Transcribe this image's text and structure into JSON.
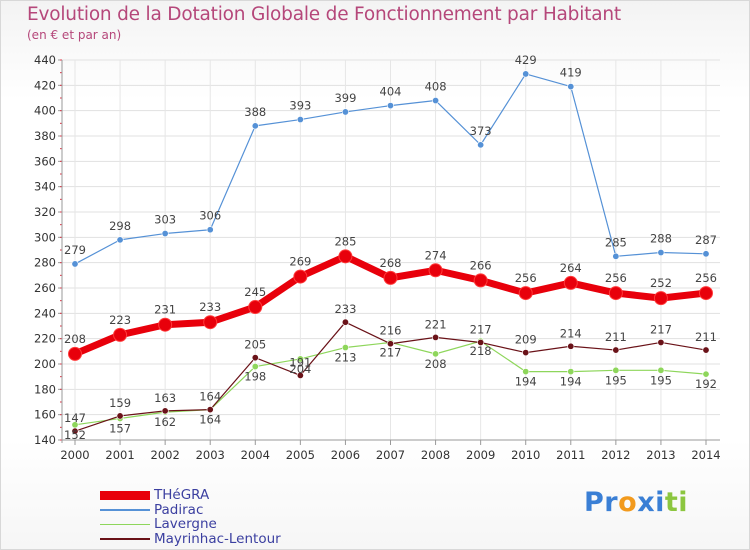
{
  "chart_data": {
    "type": "line",
    "title": "Evolution de la Dotation Globale de Fonctionnement par Habitant",
    "subtitle": "(en € et par an)",
    "x": [
      "2000",
      "2001",
      "2002",
      "2003",
      "2004",
      "2005",
      "2006",
      "2007",
      "2008",
      "2009",
      "2010",
      "2011",
      "2012",
      "2013",
      "2014"
    ],
    "ylim": [
      140,
      440
    ],
    "yticks": [
      140,
      160,
      180,
      200,
      220,
      240,
      260,
      280,
      300,
      320,
      340,
      360,
      380,
      400,
      420,
      440
    ],
    "grid": true,
    "legend_position": "bottom-left",
    "series": [
      {
        "name": "THéGRA",
        "color": "#e8000b",
        "values": [
          208,
          223,
          231,
          233,
          245,
          269,
          285,
          268,
          274,
          266,
          256,
          264,
          256,
          252,
          256
        ]
      },
      {
        "name": "Padirac",
        "color": "#5591d6",
        "values": [
          279,
          298,
          303,
          306,
          388,
          393,
          399,
          404,
          408,
          373,
          429,
          419,
          285,
          288,
          287
        ]
      },
      {
        "name": "Lavergne",
        "color": "#8ed65b",
        "values": [
          152,
          157,
          162,
          164,
          198,
          204,
          213,
          217,
          208,
          218,
          194,
          194,
          195,
          195,
          192
        ]
      },
      {
        "name": "Mayrinhac-Lentour",
        "color": "#6a1218",
        "values": [
          147,
          159,
          163,
          164,
          205,
          191,
          233,
          216,
          221,
          217,
          209,
          214,
          211,
          217,
          211
        ]
      }
    ],
    "data_labels": {
      "THéGRA": [
        "208",
        "223",
        "231",
        "233",
        "245",
        "269",
        "285",
        "268",
        "274",
        "266",
        "256",
        "264",
        "256",
        "252",
        "256"
      ],
      "Padirac": [
        "279",
        "298",
        "303",
        "306",
        "388",
        "393",
        "399",
        "404",
        "408",
        "373",
        "429",
        "419",
        "285",
        "288",
        "287"
      ],
      "Lavergne": [
        "152",
        "157",
        "162",
        "164",
        "198",
        "204",
        "213",
        "217",
        "208",
        "218",
        "194",
        "194",
        "195",
        "195",
        "192"
      ],
      "Mayrinhac-Lentour": [
        "147",
        "159",
        "163",
        "164",
        "205",
        "191",
        "233",
        "216",
        "221",
        "217",
        "209",
        "214",
        "211",
        "217",
        "211"
      ]
    }
  },
  "logo": {
    "text": "Proxiti",
    "letters": [
      "P",
      "r",
      "o",
      "x",
      "i",
      "t",
      "i"
    ],
    "colors": [
      "#3a7fd5",
      "#3a7fd5",
      "#f29a1d",
      "#3a7fd5",
      "#3a7fd5",
      "#8cc63f",
      "#8cc63f"
    ]
  }
}
